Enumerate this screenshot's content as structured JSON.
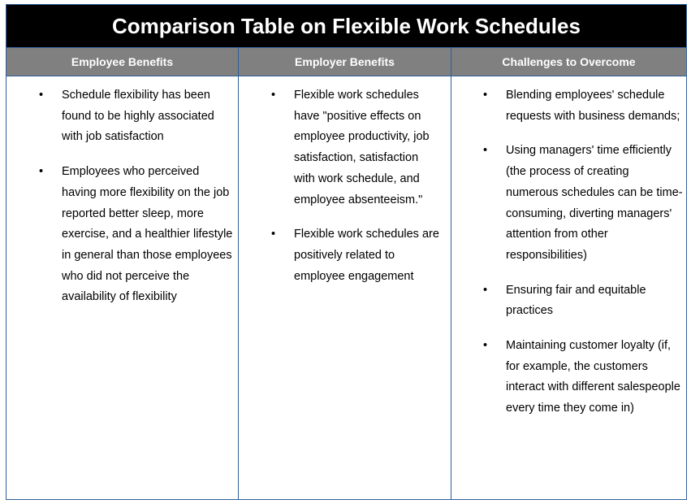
{
  "title": "Comparison Table on Flexible Work Schedules",
  "columns": [
    {
      "header": "Employee Benefits",
      "items": [
        "Schedule flexibility has been found to be highly associated with job satisfaction",
        "Employees who perceived having more flexibility on the job reported better sleep, more exercise, and a healthier lifestyle in general than those employees who did not perceive the availability of flexibility"
      ]
    },
    {
      "header": "Employer Benefits",
      "items": [
        "Flexible work schedules have \"positive effects on employee productivity, job satisfaction, satisfaction with work schedule, and employee absenteeism.\"",
        "Flexible work schedules are positively related to employee engagement"
      ]
    },
    {
      "header": "Challenges to Overcome",
      "items": [
        "Blending employees' schedule requests with business demands;",
        "Using managers' time efficiently (the process of creating numerous schedules can be time-consuming, diverting managers' attention from other responsibilities)",
        "Ensuring fair and equitable practices",
        "Maintaining customer loyalty (if, for example, the customers interact with different salespeople every time they come in)"
      ]
    }
  ],
  "colors": {
    "title_bg": "#000000",
    "header_bg": "#808080",
    "border": "#2e5e9a"
  }
}
